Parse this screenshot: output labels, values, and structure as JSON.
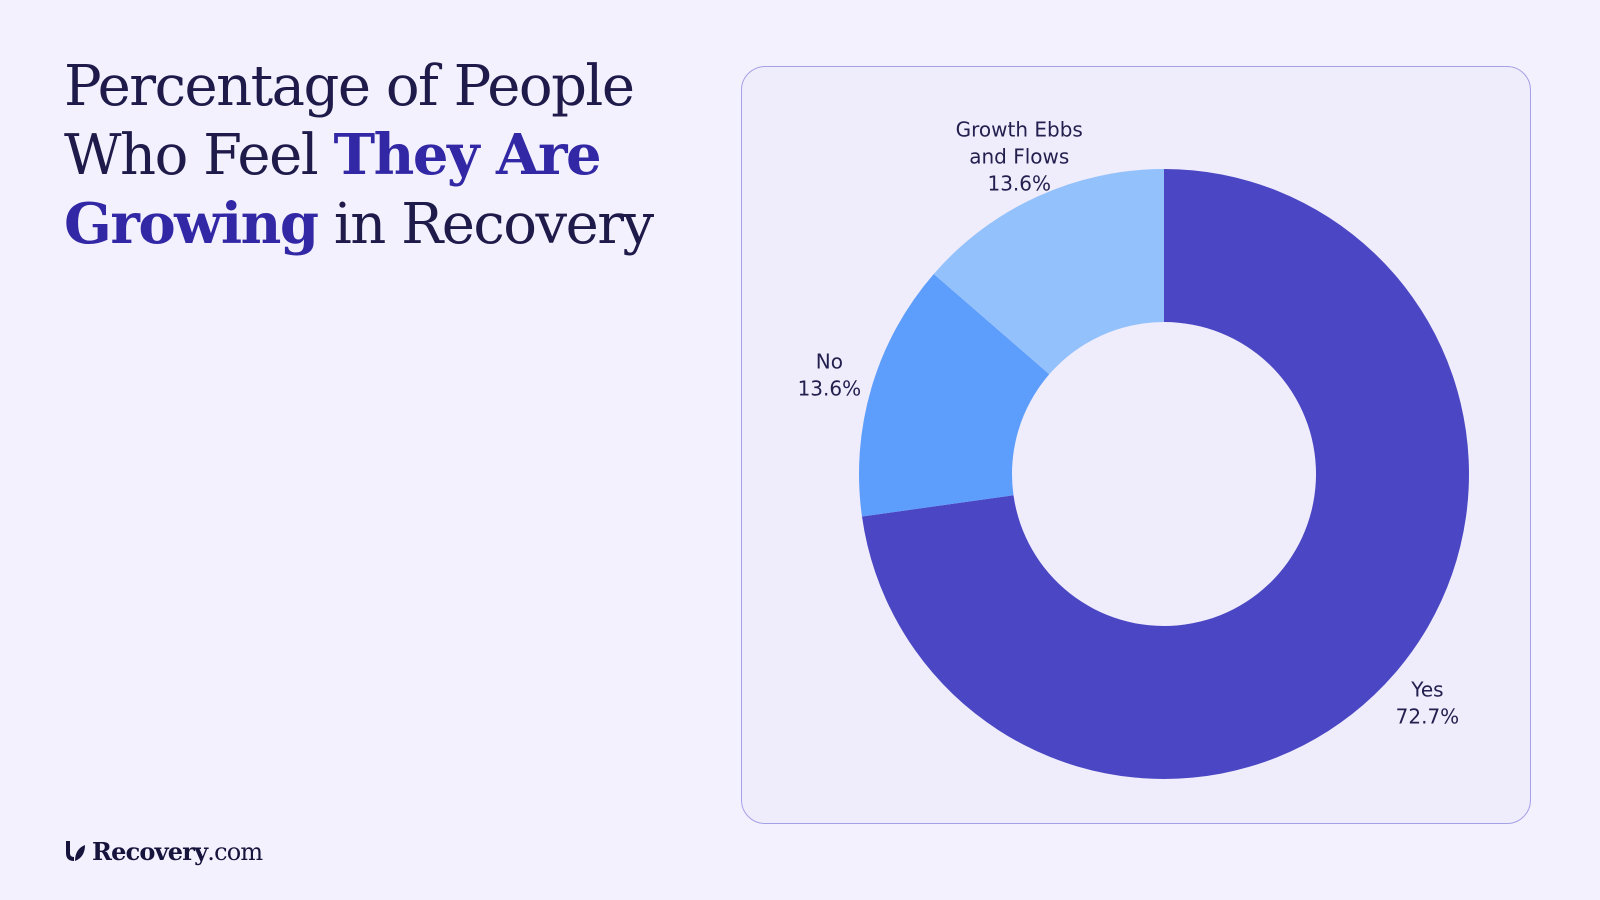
{
  "title": {
    "line1": "Percentage of People",
    "line2_plain": "Who Feel ",
    "line2_accent": "They Are",
    "line3_accent": "Growing",
    "line3_plain": " in Recovery"
  },
  "logo": {
    "brand": "Recovery",
    "suffix": ".com",
    "icon": "leaf-logo-icon"
  },
  "colors": {
    "background": "#f3f1fd",
    "title_text": "#1e1b4b",
    "title_accent": "#3228a6",
    "card_border": "#a6a1e6"
  },
  "chart_data": {
    "type": "pie",
    "variant": "donut",
    "start": "top, clockwise",
    "slices": [
      {
        "label": "Yes",
        "value": 72.7,
        "value_label": "72.7%",
        "color": "#4b47c4"
      },
      {
        "label": "No",
        "value": 13.6,
        "value_label": "13.6%",
        "color": "#5d9dfb"
      },
      {
        "label": "Growth Ebbs and Flows",
        "label_lines": [
          "Growth Ebbs",
          "and Flows"
        ],
        "value": 13.6,
        "value_label": "13.6%",
        "color": "#93c1fc"
      }
    ]
  }
}
